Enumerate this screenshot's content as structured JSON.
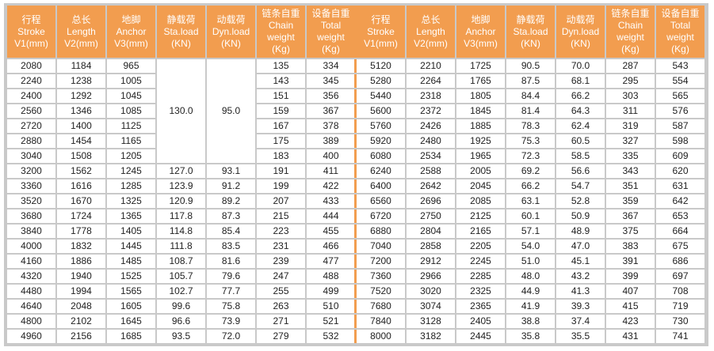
{
  "table": {
    "accent_color": "#f29d4f",
    "headers": [
      [
        "行程",
        "Stroke",
        "V1(mm)"
      ],
      [
        "总长",
        "Length",
        "V2(mm)"
      ],
      [
        "地脚",
        "Anchor",
        "V3(mm)"
      ],
      [
        "静载荷",
        "Sta.load",
        "(KN)"
      ],
      [
        "动载荷",
        "Dyn.load",
        "(KN)"
      ],
      [
        "链条自重",
        "Chain",
        "weight",
        "(Kg)"
      ],
      [
        "设备自重",
        "Total",
        "weight",
        "(Kg)"
      ]
    ],
    "merged": {
      "sta_load": "130.0",
      "dyn_load": "95.0",
      "rows": 7
    },
    "left_rows": [
      [
        "2080",
        "1184",
        "965",
        null,
        null,
        "135",
        "334"
      ],
      [
        "2240",
        "1238",
        "1005",
        null,
        null,
        "143",
        "345"
      ],
      [
        "2400",
        "1292",
        "1045",
        null,
        null,
        "151",
        "356"
      ],
      [
        "2560",
        "1346",
        "1085",
        null,
        null,
        "159",
        "367"
      ],
      [
        "2720",
        "1400",
        "1125",
        null,
        null,
        "167",
        "378"
      ],
      [
        "2880",
        "1454",
        "1165",
        null,
        null,
        "175",
        "389"
      ],
      [
        "3040",
        "1508",
        "1205",
        null,
        null,
        "183",
        "400"
      ],
      [
        "3200",
        "1562",
        "1245",
        "127.0",
        "93.1",
        "191",
        "411"
      ],
      [
        "3360",
        "1616",
        "1285",
        "123.9",
        "91.2",
        "199",
        "422"
      ],
      [
        "3520",
        "1670",
        "1325",
        "120.9",
        "89.2",
        "207",
        "433"
      ],
      [
        "3680",
        "1724",
        "1365",
        "117.8",
        "87.3",
        "215",
        "444"
      ],
      [
        "3840",
        "1778",
        "1405",
        "114.8",
        "85.4",
        "223",
        "455"
      ],
      [
        "4000",
        "1832",
        "1445",
        "111.8",
        "83.5",
        "231",
        "466"
      ],
      [
        "4160",
        "1886",
        "1485",
        "108.7",
        "81.6",
        "239",
        "477"
      ],
      [
        "4320",
        "1940",
        "1525",
        "105.7",
        "79.6",
        "247",
        "488"
      ],
      [
        "4480",
        "1994",
        "1565",
        "102.7",
        "77.7",
        "255",
        "499"
      ],
      [
        "4640",
        "2048",
        "1605",
        "99.6",
        "75.8",
        "263",
        "510"
      ],
      [
        "4800",
        "2102",
        "1645",
        "96.6",
        "73.9",
        "271",
        "521"
      ],
      [
        "4960",
        "2156",
        "1685",
        "93.5",
        "72.0",
        "279",
        "532"
      ]
    ],
    "right_rows": [
      [
        "5120",
        "2210",
        "1725",
        "90.5",
        "70.0",
        "287",
        "543"
      ],
      [
        "5280",
        "2264",
        "1765",
        "87.5",
        "68.1",
        "295",
        "554"
      ],
      [
        "5440",
        "2318",
        "1805",
        "84.4",
        "66.2",
        "303",
        "565"
      ],
      [
        "5600",
        "2372",
        "1845",
        "81.4",
        "64.3",
        "311",
        "576"
      ],
      [
        "5760",
        "2426",
        "1885",
        "78.3",
        "62.4",
        "319",
        "587"
      ],
      [
        "5920",
        "2480",
        "1925",
        "75.3",
        "60.5",
        "327",
        "598"
      ],
      [
        "6080",
        "2534",
        "1965",
        "72.3",
        "58.5",
        "335",
        "609"
      ],
      [
        "6240",
        "2588",
        "2005",
        "69.2",
        "56.6",
        "343",
        "620"
      ],
      [
        "6400",
        "2642",
        "2045",
        "66.2",
        "54.7",
        "351",
        "631"
      ],
      [
        "6560",
        "2696",
        "2085",
        "63.1",
        "52.8",
        "359",
        "642"
      ],
      [
        "6720",
        "2750",
        "2125",
        "60.1",
        "50.9",
        "367",
        "653"
      ],
      [
        "6880",
        "2804",
        "2165",
        "57.1",
        "48.9",
        "375",
        "664"
      ],
      [
        "7040",
        "2858",
        "2205",
        "54.0",
        "47.0",
        "383",
        "675"
      ],
      [
        "7200",
        "2912",
        "2245",
        "51.0",
        "45.1",
        "391",
        "686"
      ],
      [
        "7360",
        "2966",
        "2285",
        "48.0",
        "43.2",
        "399",
        "697"
      ],
      [
        "7520",
        "3020",
        "2325",
        "44.9",
        "41.3",
        "407",
        "708"
      ],
      [
        "7680",
        "3074",
        "2365",
        "41.9",
        "39.3",
        "415",
        "719"
      ],
      [
        "7840",
        "3128",
        "2405",
        "38.8",
        "37.4",
        "423",
        "730"
      ],
      [
        "8000",
        "3182",
        "2445",
        "35.8",
        "35.5",
        "431",
        "741"
      ]
    ]
  }
}
